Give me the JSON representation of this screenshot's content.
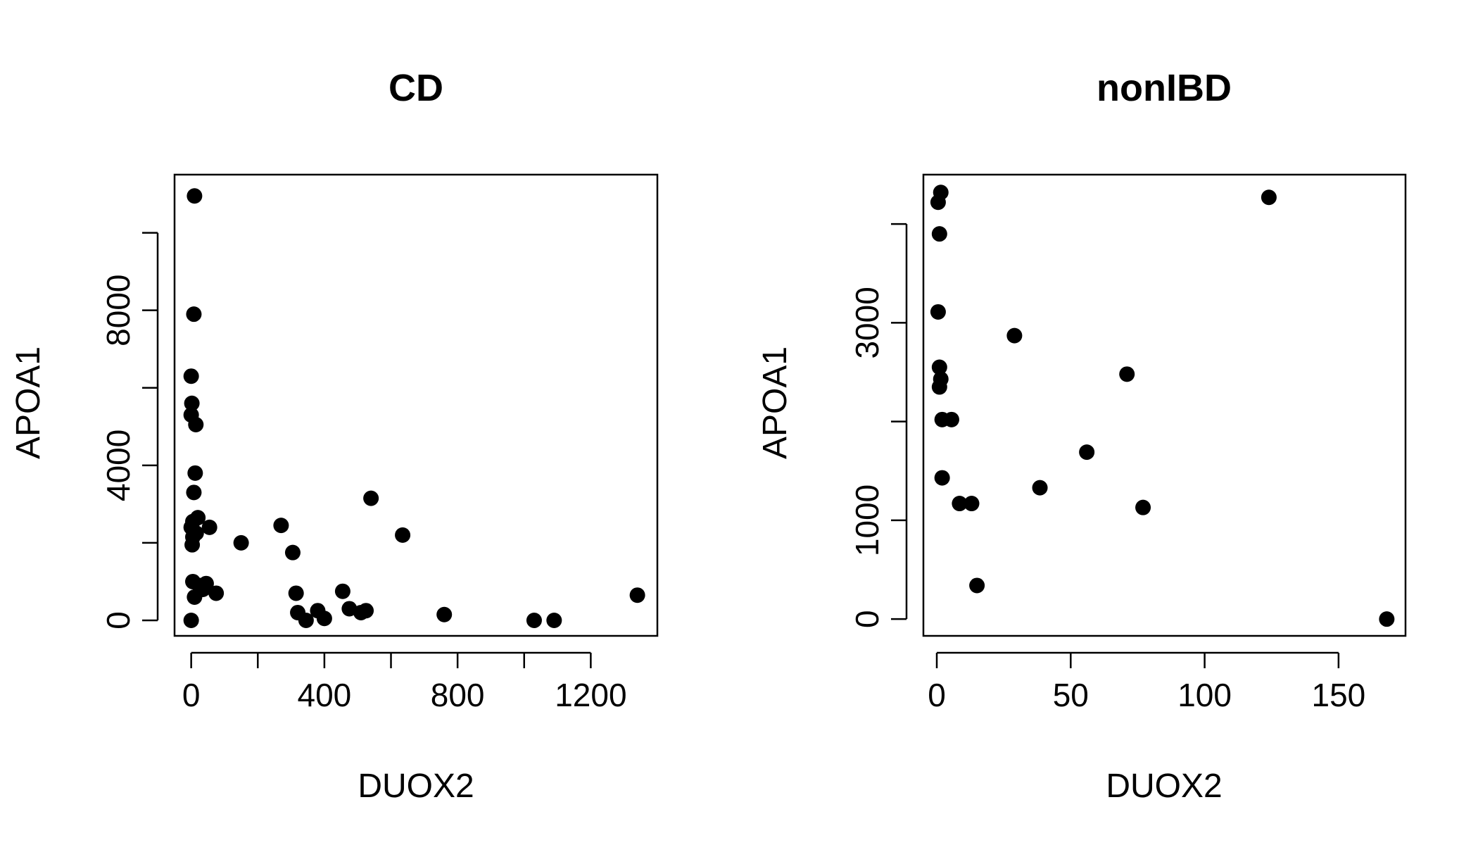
{
  "chart_data": [
    {
      "type": "scatter",
      "title": "CD",
      "xlabel": "DUOX2",
      "ylabel": "APOA1",
      "xlim": [
        -50,
        1400
      ],
      "ylim": [
        -400,
        11500
      ],
      "x_ticks": [
        0,
        200,
        400,
        600,
        800,
        1000,
        1200
      ],
      "x_tick_labels": [
        "0",
        "",
        "400",
        "",
        "800",
        "",
        "1200"
      ],
      "y_ticks": [
        0,
        2000,
        4000,
        6000,
        8000,
        10000
      ],
      "y_tick_labels": [
        "0",
        "",
        "4000",
        "",
        "8000",
        ""
      ],
      "color": "#000000",
      "grid": false,
      "points": [
        {
          "x": 10,
          "y": 10950
        },
        {
          "x": 8,
          "y": 7900
        },
        {
          "x": 0,
          "y": 6300
        },
        {
          "x": 2,
          "y": 5600
        },
        {
          "x": 0,
          "y": 5300
        },
        {
          "x": 14,
          "y": 5050
        },
        {
          "x": 12,
          "y": 3800
        },
        {
          "x": 8,
          "y": 3300
        },
        {
          "x": 20,
          "y": 2650
        },
        {
          "x": 5,
          "y": 2550
        },
        {
          "x": 0,
          "y": 2400
        },
        {
          "x": 15,
          "y": 2250
        },
        {
          "x": 5,
          "y": 2150
        },
        {
          "x": 3,
          "y": 1950
        },
        {
          "x": 55,
          "y": 2400
        },
        {
          "x": 150,
          "y": 2000
        },
        {
          "x": 270,
          "y": 2450
        },
        {
          "x": 305,
          "y": 1750
        },
        {
          "x": 540,
          "y": 3150
        },
        {
          "x": 635,
          "y": 2200
        },
        {
          "x": 5,
          "y": 1000
        },
        {
          "x": 25,
          "y": 900
        },
        {
          "x": 45,
          "y": 950
        },
        {
          "x": 35,
          "y": 800
        },
        {
          "x": 75,
          "y": 700
        },
        {
          "x": 10,
          "y": 600
        },
        {
          "x": 315,
          "y": 700
        },
        {
          "x": 455,
          "y": 750
        },
        {
          "x": 320,
          "y": 200
        },
        {
          "x": 345,
          "y": 0
        },
        {
          "x": 380,
          "y": 250
        },
        {
          "x": 400,
          "y": 50
        },
        {
          "x": 475,
          "y": 300
        },
        {
          "x": 510,
          "y": 200
        },
        {
          "x": 525,
          "y": 250
        },
        {
          "x": 760,
          "y": 150
        },
        {
          "x": 1030,
          "y": 0
        },
        {
          "x": 1090,
          "y": 0
        },
        {
          "x": 1340,
          "y": 650
        },
        {
          "x": 0,
          "y": 0
        }
      ]
    },
    {
      "type": "scatter",
      "title": "nonIBD",
      "xlabel": "DUOX2",
      "ylabel": "APOA1",
      "xlim": [
        -5,
        175
      ],
      "ylim": [
        -170,
        4500
      ],
      "x_ticks": [
        0,
        50,
        100,
        150
      ],
      "x_tick_labels": [
        "0",
        "50",
        "100",
        "150"
      ],
      "y_ticks": [
        0,
        1000,
        2000,
        3000,
        4000
      ],
      "y_tick_labels": [
        "0",
        "1000",
        "",
        "3000",
        ""
      ],
      "color": "#000000",
      "grid": false,
      "points": [
        {
          "x": 1.5,
          "y": 4320
        },
        {
          "x": 0.5,
          "y": 4220
        },
        {
          "x": 124,
          "y": 4270
        },
        {
          "x": 1,
          "y": 3900
        },
        {
          "x": 0.5,
          "y": 3110
        },
        {
          "x": 29,
          "y": 2870
        },
        {
          "x": 1,
          "y": 2550
        },
        {
          "x": 1.5,
          "y": 2430
        },
        {
          "x": 1,
          "y": 2350
        },
        {
          "x": 71,
          "y": 2480
        },
        {
          "x": 2,
          "y": 2020
        },
        {
          "x": 5.5,
          "y": 2020
        },
        {
          "x": 56,
          "y": 1690
        },
        {
          "x": 2,
          "y": 1430
        },
        {
          "x": 38.5,
          "y": 1330
        },
        {
          "x": 8.5,
          "y": 1170
        },
        {
          "x": 13,
          "y": 1170
        },
        {
          "x": 77,
          "y": 1130
        },
        {
          "x": 15,
          "y": 340
        },
        {
          "x": 168,
          "y": 0
        }
      ]
    }
  ]
}
